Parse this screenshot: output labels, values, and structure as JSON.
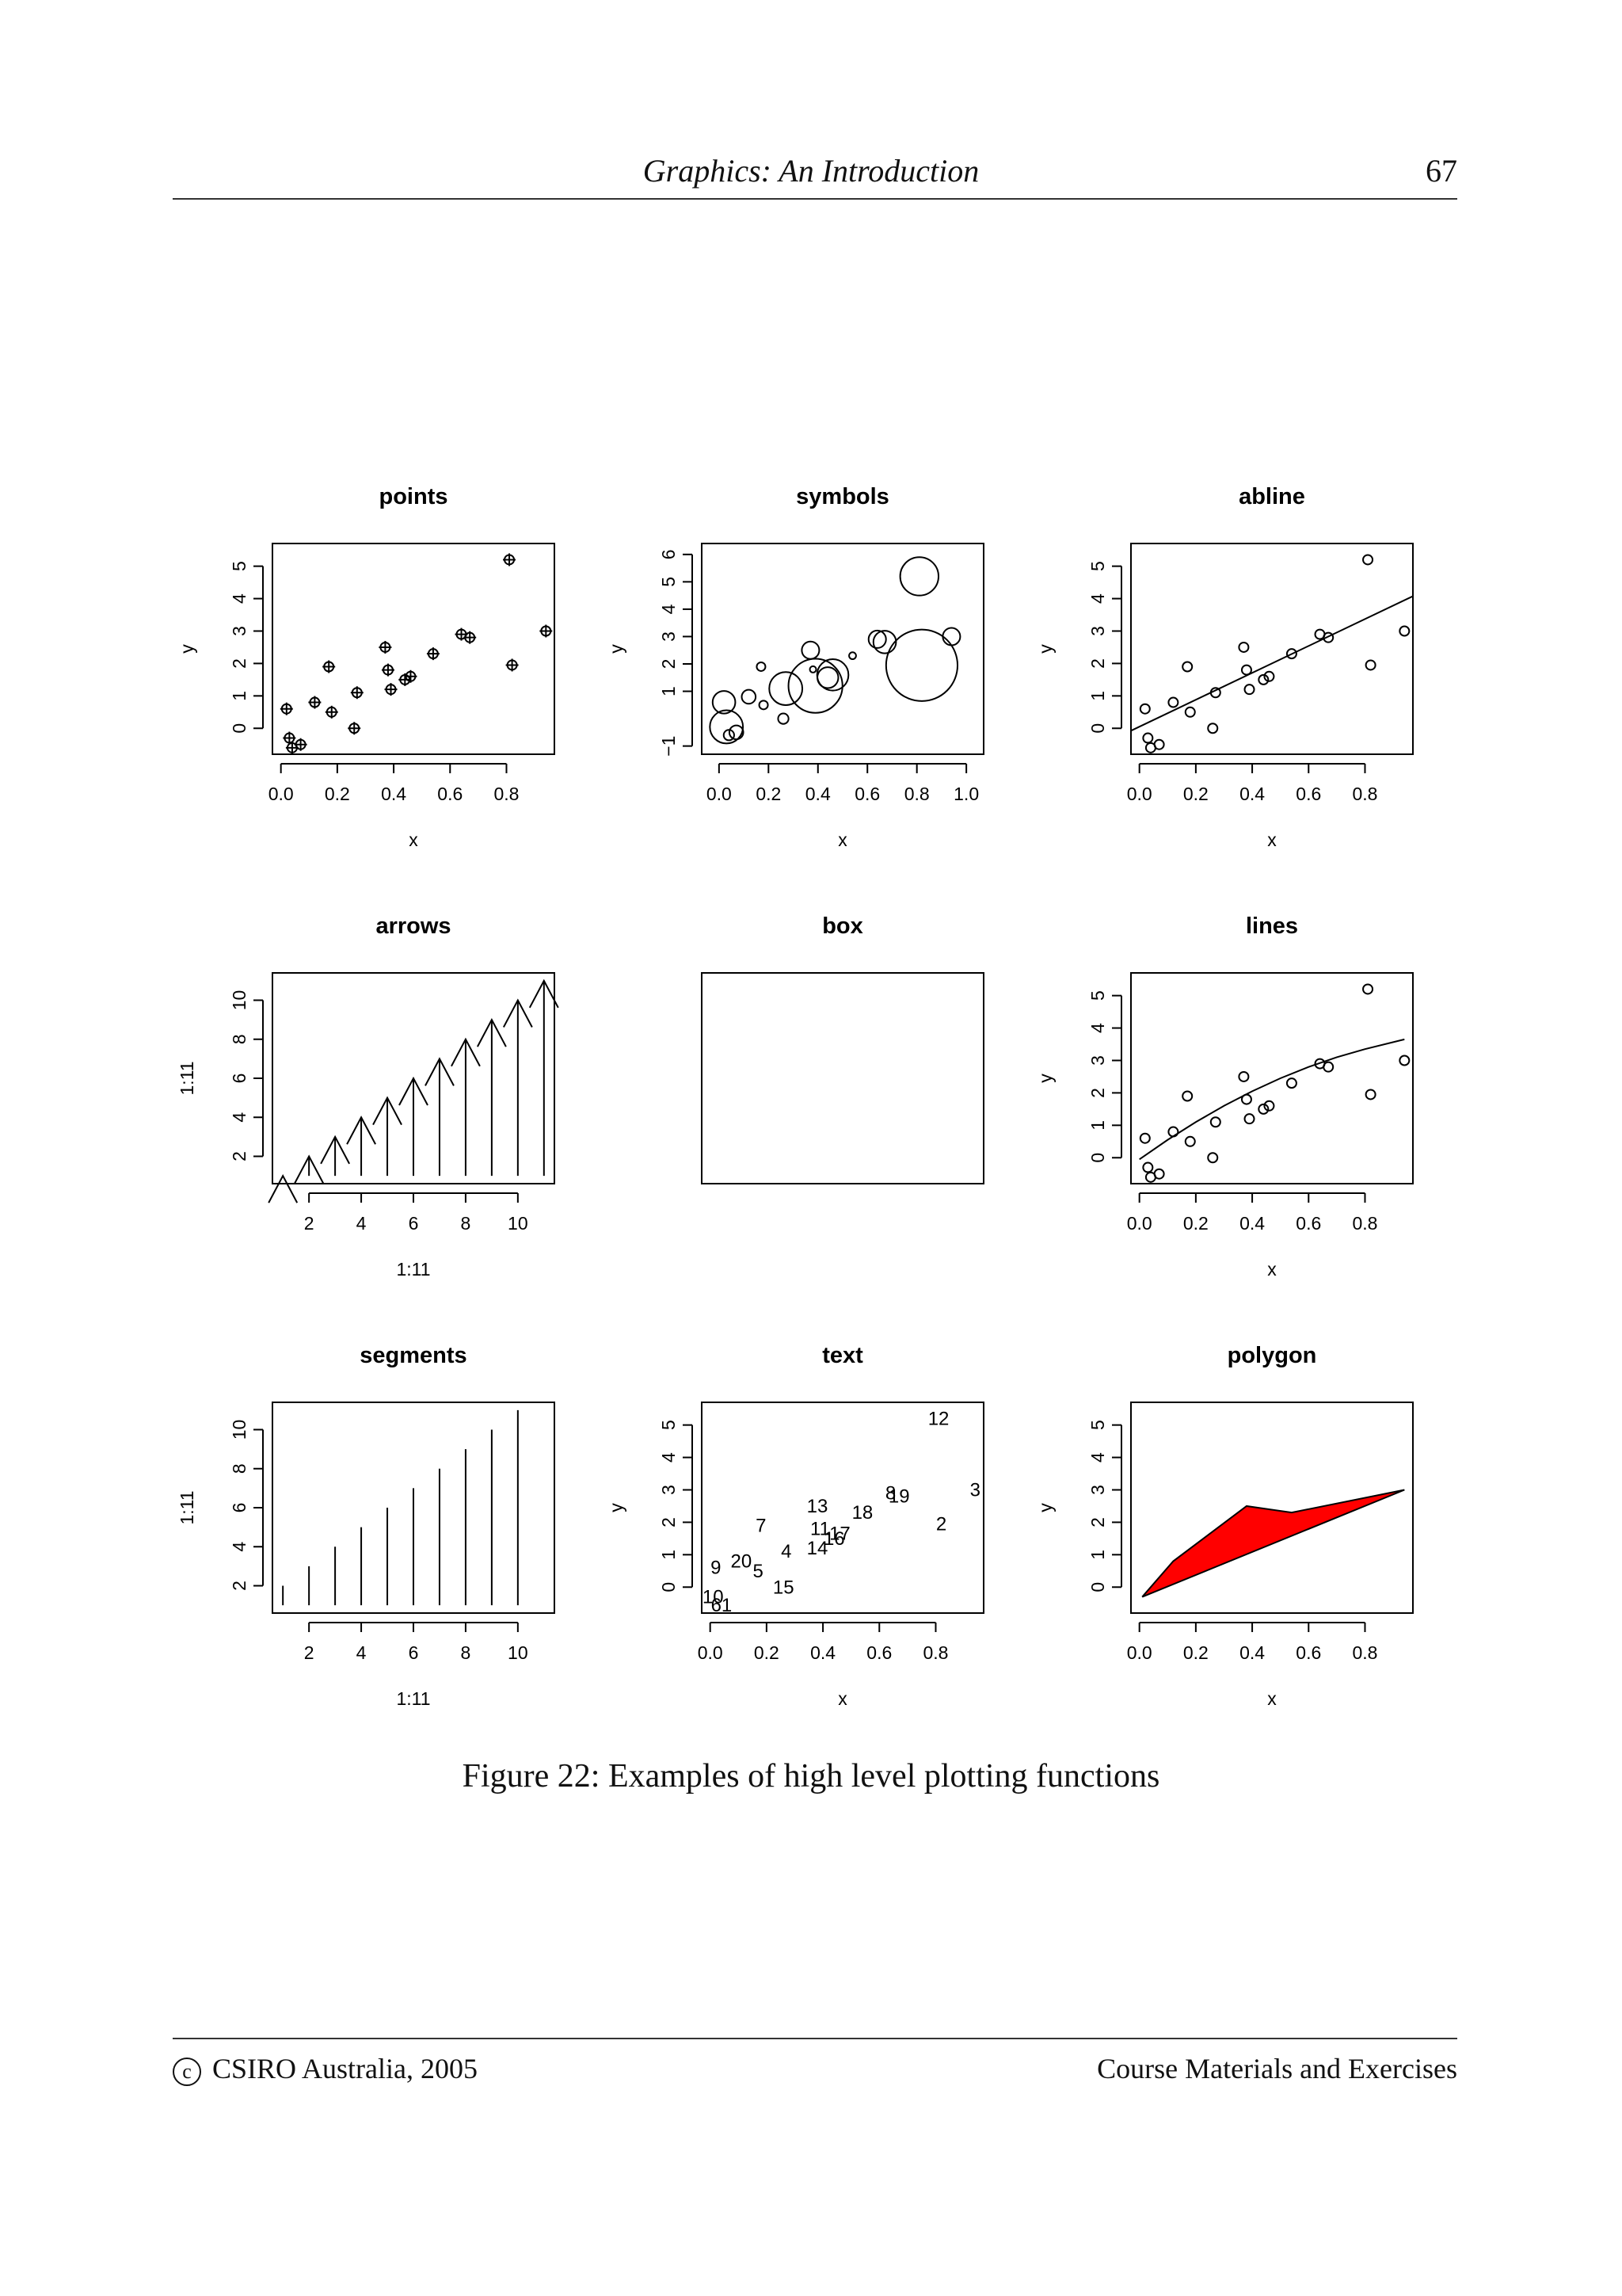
{
  "header": {
    "title": "Graphics: An Introduction",
    "page_number": "67"
  },
  "caption": "Figure 22: Examples of high level plotting functions",
  "footer": {
    "copyright_symbol": "c",
    "left": "CSIRO Australia, 2005",
    "right": "Course Materials and Exercises"
  },
  "chart_data": [
    {
      "panel": "points",
      "type": "scatter",
      "title": "points",
      "xlabel": "x",
      "ylabel": "y",
      "xlim": [
        -0.03,
        0.97
      ],
      "ylim": [
        -0.8,
        5.7
      ],
      "xticks": [
        0.0,
        0.2,
        0.4,
        0.6,
        0.8
      ],
      "xticklabels": [
        "0.0",
        "0.2",
        "0.4",
        "0.6",
        "0.8"
      ],
      "yticks": [
        0,
        1,
        2,
        3,
        4,
        5
      ],
      "yticklabels": [
        "0",
        "1",
        "2",
        "3",
        "4",
        "5"
      ],
      "marker": "circle-plus",
      "x": [
        0.02,
        0.04,
        0.07,
        0.03,
        0.12,
        0.18,
        0.17,
        0.26,
        0.27,
        0.38,
        0.37,
        0.39,
        0.44,
        0.46,
        0.54,
        0.64,
        0.67,
        0.81,
        0.82,
        0.94
      ],
      "y": [
        0.6,
        -0.6,
        -0.5,
        -0.3,
        0.8,
        0.5,
        1.9,
        0.0,
        1.1,
        1.8,
        2.5,
        1.2,
        1.5,
        1.6,
        2.3,
        2.9,
        2.8,
        5.2,
        1.95,
        3.0
      ]
    },
    {
      "panel": "symbols",
      "type": "scatter",
      "title": "symbols",
      "xlabel": "x",
      "ylabel": "y",
      "xlim": [
        -0.07,
        1.07
      ],
      "ylim": [
        -1.3,
        6.4
      ],
      "xticks": [
        0.0,
        0.2,
        0.4,
        0.6,
        0.8,
        1.0
      ],
      "xticklabels": [
        "0.0",
        "0.2",
        "0.4",
        "0.6",
        "0.8",
        "1.0"
      ],
      "yticks": [
        -1,
        1,
        2,
        3,
        4,
        5,
        6
      ],
      "yticklabels": [
        "−1",
        "1",
        "2",
        "3",
        "4",
        "5",
        "6"
      ],
      "marker": "circle",
      "size_note": "circle radius varies per point",
      "x": [
        0.02,
        0.04,
        0.07,
        0.03,
        0.12,
        0.18,
        0.17,
        0.26,
        0.27,
        0.38,
        0.37,
        0.39,
        0.44,
        0.46,
        0.54,
        0.64,
        0.67,
        0.81,
        0.82,
        0.94
      ],
      "y": [
        0.6,
        -0.6,
        -0.5,
        -0.3,
        0.8,
        0.5,
        1.9,
        0.0,
        1.1,
        1.8,
        2.5,
        1.2,
        1.5,
        1.6,
        2.3,
        2.9,
        2.8,
        5.2,
        1.95,
        3.0
      ],
      "sizes": [
        1.3,
        0.6,
        0.8,
        1.9,
        0.8,
        0.5,
        0.5,
        0.6,
        1.9,
        0.3,
        1.0,
        3.1,
        1.2,
        1.8,
        0.4,
        1.0,
        1.3,
        2.2,
        4.1,
        1.0
      ]
    },
    {
      "panel": "abline",
      "type": "scatter",
      "title": "abline",
      "xlabel": "x",
      "ylabel": "y",
      "xlim": [
        -0.03,
        0.97
      ],
      "ylim": [
        -0.8,
        5.7
      ],
      "xticks": [
        0.0,
        0.2,
        0.4,
        0.6,
        0.8
      ],
      "xticklabels": [
        "0.0",
        "0.2",
        "0.4",
        "0.6",
        "0.8"
      ],
      "yticks": [
        0,
        1,
        2,
        3,
        4,
        5
      ],
      "yticklabels": [
        "0",
        "1",
        "2",
        "3",
        "4",
        "5"
      ],
      "marker": "open-circle",
      "x": [
        0.02,
        0.04,
        0.07,
        0.03,
        0.12,
        0.18,
        0.17,
        0.26,
        0.27,
        0.38,
        0.37,
        0.39,
        0.44,
        0.46,
        0.54,
        0.64,
        0.67,
        0.81,
        0.82,
        0.94
      ],
      "y": [
        0.6,
        -0.6,
        -0.5,
        -0.3,
        0.8,
        0.5,
        1.9,
        0.0,
        1.1,
        1.8,
        2.5,
        1.2,
        1.5,
        1.6,
        2.3,
        2.9,
        2.8,
        5.2,
        1.95,
        3.0
      ],
      "line": {
        "intercept": 0.05,
        "slope": 4.15
      }
    },
    {
      "panel": "arrows",
      "type": "arrows",
      "title": "arrows",
      "xlabel": "1:11",
      "ylabel": "1:11",
      "xlim": [
        0.6,
        11.4
      ],
      "ylim": [
        0.6,
        11.4
      ],
      "xticks": [
        2,
        4,
        6,
        8,
        10
      ],
      "xticklabels": [
        "2",
        "4",
        "6",
        "8",
        "10"
      ],
      "yticks": [
        2,
        4,
        6,
        8,
        10
      ],
      "yticklabels": [
        "2",
        "4",
        "6",
        "8",
        "10"
      ],
      "from_y": 1,
      "x": [
        1,
        2,
        3,
        4,
        5,
        6,
        7,
        8,
        9,
        10,
        11
      ],
      "y": [
        1,
        2,
        3,
        4,
        5,
        6,
        7,
        8,
        9,
        10,
        11
      ]
    },
    {
      "panel": "box",
      "type": "box",
      "title": "box"
    },
    {
      "panel": "lines",
      "type": "line",
      "title": "lines",
      "xlabel": "x",
      "ylabel": "y",
      "xlim": [
        -0.03,
        0.97
      ],
      "ylim": [
        -0.8,
        5.7
      ],
      "xticks": [
        0.0,
        0.2,
        0.4,
        0.6,
        0.8
      ],
      "xticklabels": [
        "0.0",
        "0.2",
        "0.4",
        "0.6",
        "0.8"
      ],
      "yticks": [
        0,
        1,
        2,
        3,
        4,
        5
      ],
      "yticklabels": [
        "0",
        "1",
        "2",
        "3",
        "4",
        "5"
      ],
      "marker": "open-circle",
      "x": [
        0.02,
        0.04,
        0.07,
        0.03,
        0.12,
        0.18,
        0.17,
        0.26,
        0.27,
        0.38,
        0.37,
        0.39,
        0.44,
        0.46,
        0.54,
        0.64,
        0.67,
        0.81,
        0.82,
        0.94
      ],
      "y": [
        0.6,
        -0.6,
        -0.5,
        -0.3,
        0.8,
        0.5,
        1.9,
        0.0,
        1.1,
        1.8,
        2.5,
        1.2,
        1.5,
        1.6,
        2.3,
        2.9,
        2.8,
        5.2,
        1.95,
        3.0
      ],
      "curve": {
        "x": [
          0.0,
          0.1,
          0.2,
          0.3,
          0.4,
          0.5,
          0.6,
          0.7,
          0.8,
          0.94
        ],
        "y": [
          -0.05,
          0.55,
          1.1,
          1.6,
          2.05,
          2.45,
          2.8,
          3.1,
          3.35,
          3.65
        ]
      }
    },
    {
      "panel": "segments",
      "type": "segments",
      "title": "segments",
      "xlabel": "1:11",
      "ylabel": "1:11",
      "xlim": [
        0.6,
        11.4
      ],
      "ylim": [
        0.6,
        11.4
      ],
      "xticks": [
        2,
        4,
        6,
        8,
        10
      ],
      "xticklabels": [
        "2",
        "4",
        "6",
        "8",
        "10"
      ],
      "yticks": [
        2,
        4,
        6,
        8,
        10
      ],
      "yticklabels": [
        "2",
        "4",
        "6",
        "8",
        "10"
      ],
      "from_y": 1,
      "x": [
        1,
        2,
        3,
        4,
        5,
        6,
        7,
        8,
        9,
        10
      ],
      "y": [
        2,
        3,
        4,
        5,
        6,
        7,
        8,
        9,
        10,
        11
      ]
    },
    {
      "panel": "text",
      "type": "text",
      "title": "text",
      "xlabel": "x",
      "ylabel": "y",
      "xlim": [
        -0.03,
        0.97
      ],
      "ylim": [
        -0.8,
        5.7
      ],
      "xticks": [
        0.0,
        0.2,
        0.4,
        0.6,
        0.8
      ],
      "xticklabels": [
        "0.0",
        "0.2",
        "0.4",
        "0.6",
        "0.8"
      ],
      "yticks": [
        0,
        1,
        2,
        3,
        4,
        5
      ],
      "yticklabels": [
        "0",
        "1",
        "2",
        "3",
        "4",
        "5"
      ],
      "labels": [
        "9",
        "20",
        "5",
        "4",
        "7",
        "10",
        "61",
        "15",
        "13",
        "11",
        "14",
        "17",
        "16",
        "18",
        "8",
        "19",
        "12",
        "2",
        "3"
      ],
      "x": [
        0.02,
        0.11,
        0.17,
        0.27,
        0.18,
        0.01,
        0.04,
        0.26,
        0.38,
        0.39,
        0.38,
        0.46,
        0.44,
        0.54,
        0.64,
        0.67,
        0.81,
        0.82,
        0.94
      ],
      "y": [
        0.6,
        0.8,
        0.5,
        1.1,
        1.9,
        -0.3,
        -0.55,
        0.0,
        2.5,
        1.8,
        1.2,
        1.65,
        1.5,
        2.3,
        2.9,
        2.8,
        5.2,
        1.95,
        3.0
      ]
    },
    {
      "panel": "polygon",
      "type": "polygon",
      "title": "polygon",
      "xlabel": "x",
      "ylabel": "y",
      "xlim": [
        -0.03,
        0.97
      ],
      "ylim": [
        -0.8,
        5.7
      ],
      "xticks": [
        0.0,
        0.2,
        0.4,
        0.6,
        0.8
      ],
      "xticklabels": [
        "0.0",
        "0.2",
        "0.4",
        "0.6",
        "0.8"
      ],
      "yticks": [
        0,
        1,
        2,
        3,
        4,
        5
      ],
      "yticklabels": [
        "0",
        "1",
        "2",
        "3",
        "4",
        "5"
      ],
      "fill": "#ff0000",
      "x": [
        0.01,
        0.12,
        0.38,
        0.54,
        0.94
      ],
      "y": [
        -0.3,
        0.8,
        2.5,
        2.3,
        3.0
      ]
    }
  ]
}
